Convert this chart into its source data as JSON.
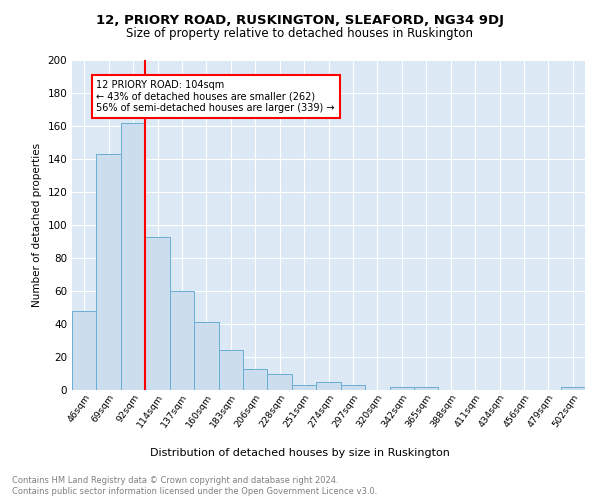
{
  "title1": "12, PRIORY ROAD, RUSKINGTON, SLEAFORD, NG34 9DJ",
  "title2": "Size of property relative to detached houses in Ruskington",
  "xlabel": "Distribution of detached houses by size in Ruskington",
  "ylabel": "Number of detached properties",
  "categories": [
    "46sqm",
    "69sqm",
    "92sqm",
    "114sqm",
    "137sqm",
    "160sqm",
    "183sqm",
    "206sqm",
    "228sqm",
    "251sqm",
    "274sqm",
    "297sqm",
    "320sqm",
    "342sqm",
    "365sqm",
    "388sqm",
    "411sqm",
    "434sqm",
    "456sqm",
    "479sqm",
    "502sqm"
  ],
  "values": [
    48,
    143,
    162,
    93,
    60,
    41,
    24,
    13,
    10,
    3,
    5,
    3,
    0,
    2,
    2,
    0,
    0,
    0,
    0,
    0,
    2
  ],
  "bar_color": "#ccdded",
  "bar_edge_color": "#6aadd5",
  "red_line_index": 2,
  "annotation_text": "12 PRIORY ROAD: 104sqm\n← 43% of detached houses are smaller (262)\n56% of semi-detached houses are larger (339) →",
  "annotation_box_color": "white",
  "annotation_box_edge": "red",
  "ylim": [
    0,
    200
  ],
  "yticks": [
    0,
    20,
    40,
    60,
    80,
    100,
    120,
    140,
    160,
    180,
    200
  ],
  "footer_line1": "Contains HM Land Registry data © Crown copyright and database right 2024.",
  "footer_line2": "Contains public sector information licensed under the Open Government Licence v3.0.",
  "bg_color": "#dce9f5",
  "plot_bg_color": "#dce9f5"
}
